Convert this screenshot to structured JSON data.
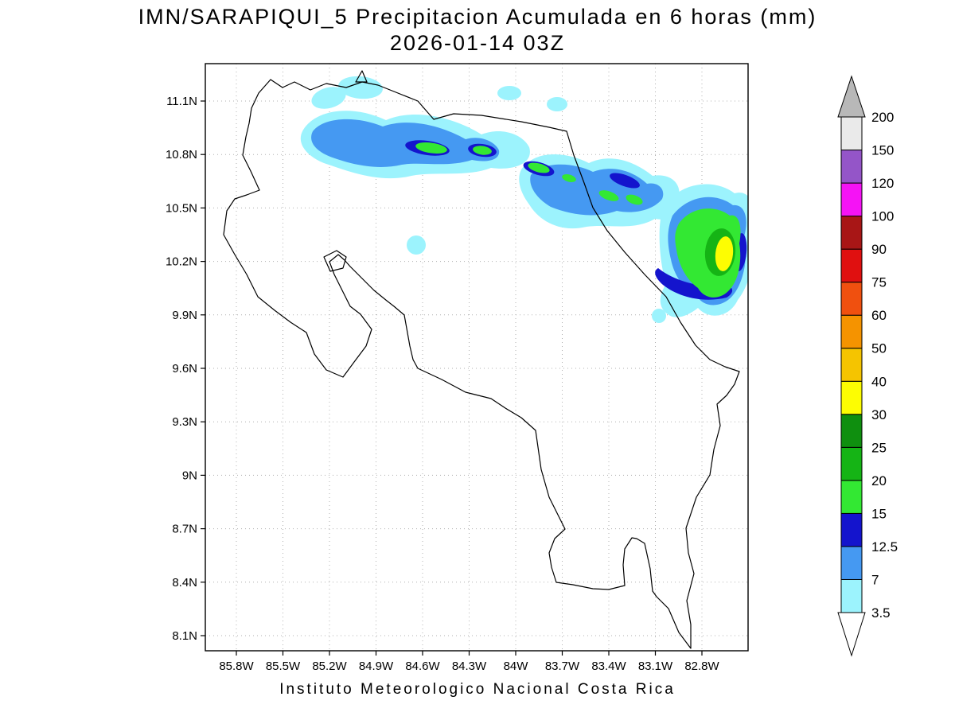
{
  "title": {
    "line1": "IMN/SARAPIQUI_5 Precipitacion Acumulada en 6 horas (mm)",
    "line2": "2026-01-14 03Z"
  },
  "footer": "Instituto Meteorologico Nacional Costa Rica",
  "map": {
    "region": "Costa Rica",
    "x_axis": {
      "ticks": [
        "85.8W",
        "85.5W",
        "85.2W",
        "84.9W",
        "84.6W",
        "84.3W",
        "84W",
        "83.7W",
        "83.4W",
        "83.1W",
        "82.8W"
      ]
    },
    "y_axis": {
      "ticks": [
        "11.1N",
        "10.8N",
        "10.5N",
        "10.2N",
        "9.9N",
        "9.6N",
        "9.3N",
        "9N",
        "8.7N",
        "8.4N",
        "8.1N"
      ]
    }
  },
  "colorbar": {
    "levels_bottom_to_top": [
      "3.5",
      "7",
      "12.5",
      "15",
      "20",
      "25",
      "30",
      "40",
      "50",
      "60",
      "75",
      "90",
      "100",
      "120",
      "150",
      "200"
    ],
    "segment_colors_bottom_to_top": [
      "#9cf3fd",
      "#4599f2",
      "#1414cd",
      "#33e833",
      "#15b415",
      "#0f8f0f",
      "#fdfd02",
      "#f5c400",
      "#f59300",
      "#f0500f",
      "#e01010",
      "#a81616",
      "#f513f5",
      "#9455c8",
      "#eaeaea"
    ],
    "below_min_color": "#ffffff",
    "above_max_color": "#b8b8b8"
  },
  "chart_data": {
    "type": "heatmap",
    "title": "IMN/SARAPIQUI_5 Precipitacion Acumulada en 6 horas (mm)",
    "valid_time": "2026-01-14 03Z",
    "units": "mm",
    "lon_ticks_deg_w": [
      85.8,
      85.5,
      85.2,
      84.9,
      84.6,
      84.3,
      84.0,
      83.7,
      83.4,
      83.1,
      82.8
    ],
    "lat_ticks_deg_n": [
      11.1,
      10.8,
      10.5,
      10.2,
      9.9,
      9.6,
      9.3,
      9.0,
      8.7,
      8.4,
      8.1
    ],
    "contour_levels_mm": [
      3.5,
      7,
      12.5,
      15,
      20,
      25,
      30,
      40,
      50,
      60,
      75,
      90,
      100,
      120,
      150,
      200
    ],
    "description": "WNW-ESE oriented precipitation bands over the northern Caribbean slope between 10.2N-10.9N; 15-25 mm cores along 10.5-10.8N and a 30-50 mm maximum (yellow core) near 10.2N 82.9W; rest of the country with no shaded accumulation."
  }
}
